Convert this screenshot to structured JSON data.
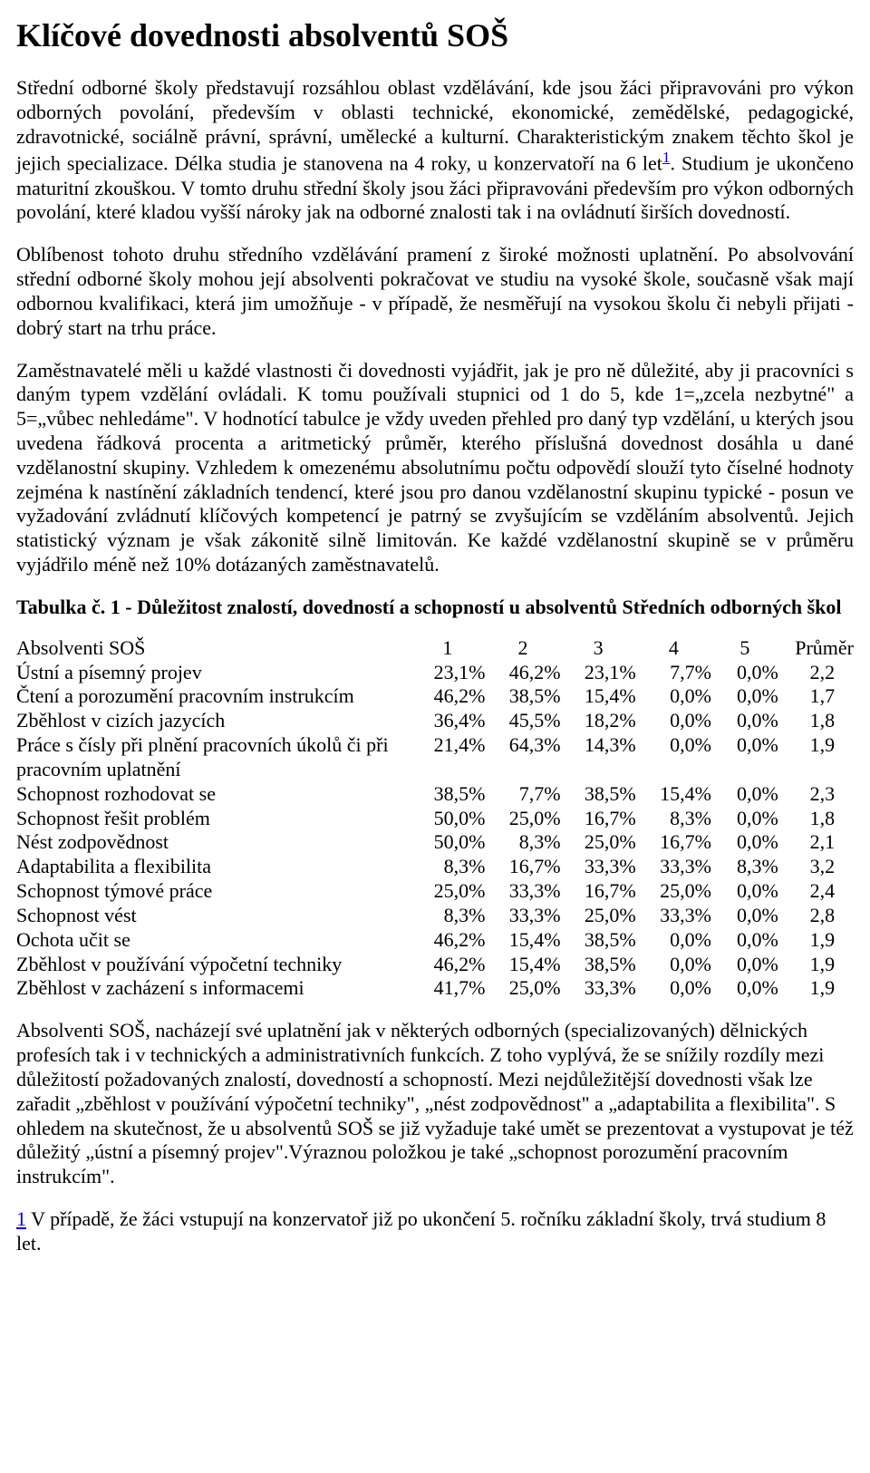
{
  "title": "Klíčové dovednosti absolventů SOŠ",
  "paragraphs": {
    "p1a": "Střední odborné školy představují rozsáhlou oblast vzdělávání, kde jsou žáci připravováni pro výkon odborných povolání, především v oblasti technické, ekonomické, zemědělské, pedagogické, zdravotnické, sociálně právní, správní, umělecké a kulturní. Charakteristickým znakem těchto škol je jejich specializace. Délka studia je stanovena na 4 roky, u konzervatoří na 6 let",
    "p1b": ". Studium je ukončeno maturitní zkouškou. V tomto druhu střední školy jsou žáci připravováni především pro výkon odborných povolání, které kladou vyšší nároky jak na odborné znalosti tak i na ovládnutí širších dovedností.",
    "p2": "Oblíbenost tohoto druhu středního vzdělávání pramení z široké možnosti uplatnění. Po absolvování střední odborné školy mohou její absolventi pokračovat ve studiu na vysoké škole, současně však mají odbornou kvalifikaci, která jim umožňuje - v případě, že nesměřují na vysokou školu či nebyli přijati - dobrý start na trhu práce.",
    "p3": "Zaměstnavatelé měli u každé vlastnosti či dovednosti vyjádřit, jak je pro ně důležité, aby ji pracovníci s daným typem vzdělání ovládali. K tomu používali stupnici od 1 do 5, kde 1=„zcela nezbytné\" a 5=„vůbec nehledáme\". V hodnotící tabulce je vždy uveden přehled pro daný typ vzdělání, u kterých jsou uvedena řádková procenta a aritmetický průměr, kterého příslušná dovednost dosáhla u dané vzdělanostní skupiny. Vzhledem k omezenému absolutnímu počtu odpovědí slouží tyto číselné hodnoty zejména k nastínění základních tendencí, které jsou pro danou vzdělanostní skupinu typické - posun ve vyžadování zvládnutí klíčových kompetencí je patrný se zvyšujícím se vzděláním absolventů. Jejich statistický význam je však zákonitě silně limitován. Ke každé vzdělanostní skupině se v průměru vyjádřilo méně než 10% dotázaných zaměstnavatelů.",
    "p4": "Absolventi SOŠ, nacházejí své uplatnění jak v některých odborných (specializovaných) dělnických profesích tak i v technických a administrativních funkcích. Z toho vyplývá, že se snížily rozdíly mezi důležitostí požadovaných znalostí, dovedností a schopností. Mezi nejdůležitější dovednosti však lze zařadit „zběhlost v používání výpočetní techniky\", „nést zodpovědnost\" a „adaptabilita a flexibilita\". S ohledem na skutečnost, že u absolventů SOŠ se již vyžaduje také umět se prezentovat a vystupovat je též důležitý „ústní a písemný projev\".Výraznou položkou je také „schopnost porozumění pracovním instrukcím\"."
  },
  "footnoteRef": "1",
  "tableCaption": "Tabulka č. 1 - Důležitost znalostí, dovedností a schopností u absolventů Středních odborných škol",
  "table": {
    "header": {
      "label": "Absolventi SOŠ",
      "cols": [
        "1",
        "2",
        "3",
        "4",
        "5"
      ],
      "avg": "Průměr"
    },
    "rows": [
      {
        "label": "Ústní a písemný projev",
        "v": [
          "23,1%",
          "46,2%",
          "23,1%",
          "7,7%",
          "0,0%"
        ],
        "avg": "2,2"
      },
      {
        "label": "Čtení a porozumění pracovním instrukcím",
        "v": [
          "46,2%",
          "38,5%",
          "15,4%",
          "0,0%",
          "0,0%"
        ],
        "avg": "1,7"
      },
      {
        "label": "Zběhlost v cizích jazycích",
        "v": [
          "36,4%",
          "45,5%",
          "18,2%",
          "0,0%",
          "0,0%"
        ],
        "avg": "1,8"
      },
      {
        "label": "Práce s čísly při plnění pracovních úkolů či při pracovním uplatnění",
        "v": [
          "21,4%",
          "64,3%",
          "14,3%",
          "0,0%",
          "0,0%"
        ],
        "avg": "1,9"
      },
      {
        "label": "Schopnost rozhodovat se",
        "v": [
          "38,5%",
          "7,7%",
          "38,5%",
          "15,4%",
          "0,0%"
        ],
        "avg": "2,3"
      },
      {
        "label": "Schopnost řešit problém",
        "v": [
          "50,0%",
          "25,0%",
          "16,7%",
          "8,3%",
          "0,0%"
        ],
        "avg": "1,8"
      },
      {
        "label": "Nést zodpovědnost",
        "v": [
          "50,0%",
          "8,3%",
          "25,0%",
          "16,7%",
          "0,0%"
        ],
        "avg": "2,1"
      },
      {
        "label": "Adaptabilita a flexibilita",
        "v": [
          "8,3%",
          "16,7%",
          "33,3%",
          "33,3%",
          "8,3%"
        ],
        "avg": "3,2"
      },
      {
        "label": "Schopnost týmové práce",
        "v": [
          "25,0%",
          "33,3%",
          "16,7%",
          "25,0%",
          "0,0%"
        ],
        "avg": "2,4"
      },
      {
        "label": "Schopnost vést",
        "v": [
          "8,3%",
          "33,3%",
          "25,0%",
          "33,3%",
          "0,0%"
        ],
        "avg": "2,8"
      },
      {
        "label": "Ochota učit se",
        "v": [
          "46,2%",
          "15,4%",
          "38,5%",
          "0,0%",
          "0,0%"
        ],
        "avg": "1,9"
      },
      {
        "label": "Zběhlost v používání výpočetní techniky",
        "v": [
          "46,2%",
          "15,4%",
          "38,5%",
          "0,0%",
          "0,0%"
        ],
        "avg": "1,9"
      },
      {
        "label": "Zběhlost v zacházení s informacemi",
        "v": [
          "41,7%",
          "25,0%",
          "33,3%",
          "0,0%",
          "0,0%"
        ],
        "avg": "1,9"
      }
    ]
  },
  "footnote": {
    "num": "1",
    "text": " V případě, že žáci vstupují na konzervatoř již po ukončení 5. ročníku základní školy, trvá studium 8 let."
  }
}
